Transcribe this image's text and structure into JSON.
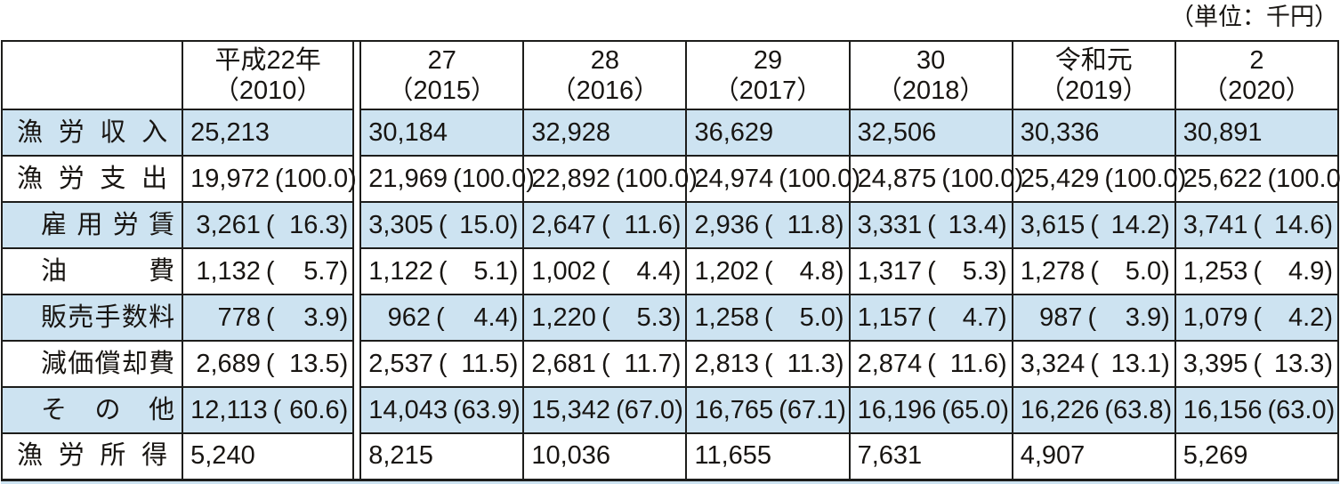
{
  "unit_label": "（単位：千円）",
  "colors": {
    "row_highlight": "#cde3f1",
    "border": "#1d1d1b",
    "text": "#181512"
  },
  "chart_data": {
    "type": "table",
    "unit": "千円",
    "columns": [
      {
        "era": "平成22年",
        "year": "（2010）"
      },
      {
        "era": "27",
        "year": "（2015）"
      },
      {
        "era": "28",
        "year": "（2016）"
      },
      {
        "era": "29",
        "year": "（2017）"
      },
      {
        "era": "30",
        "year": "（2018）"
      },
      {
        "era": "令和元",
        "year": "（2019）"
      },
      {
        "era": "2",
        "year": "（2020）"
      }
    ],
    "rows": [
      {
        "label": "漁労収入",
        "indent": false,
        "cells": [
          {
            "v": "25,213"
          },
          {
            "v": "30,184"
          },
          {
            "v": "32,928"
          },
          {
            "v": "36,629"
          },
          {
            "v": "32,506"
          },
          {
            "v": "30,336"
          },
          {
            "v": "30,891"
          }
        ]
      },
      {
        "label": "漁労支出",
        "indent": false,
        "cells": [
          {
            "v": "19,972",
            "p": "100.0"
          },
          {
            "v": "21,969",
            "p": "100.0"
          },
          {
            "v": "22,892",
            "p": "100.0"
          },
          {
            "v": "24,974",
            "p": "100.0"
          },
          {
            "v": "24,875",
            "p": "100.0"
          },
          {
            "v": "25,429",
            "p": "100.0"
          },
          {
            "v": "25,622",
            "p": "100.0"
          }
        ]
      },
      {
        "label": "雇用労賃",
        "indent": true,
        "cells": [
          {
            "v": "3,261",
            "p": "16.3"
          },
          {
            "v": "3,305",
            "p": "15.0"
          },
          {
            "v": "2,647",
            "p": "11.6"
          },
          {
            "v": "2,936",
            "p": "11.8"
          },
          {
            "v": "3,331",
            "p": "13.4"
          },
          {
            "v": "3,615",
            "p": "14.2"
          },
          {
            "v": "3,741",
            "p": "14.6"
          }
        ]
      },
      {
        "label": "油費",
        "indent": true,
        "cells": [
          {
            "v": "1,132",
            "p": "5.7"
          },
          {
            "v": "1,122",
            "p": "5.1"
          },
          {
            "v": "1,002",
            "p": "4.4"
          },
          {
            "v": "1,202",
            "p": "4.8"
          },
          {
            "v": "1,317",
            "p": "5.3"
          },
          {
            "v": "1,278",
            "p": "5.0"
          },
          {
            "v": "1,253",
            "p": "4.9"
          }
        ]
      },
      {
        "label": "販売手数料",
        "indent": true,
        "cells": [
          {
            "v": "778",
            "p": "3.9"
          },
          {
            "v": "962",
            "p": "4.4"
          },
          {
            "v": "1,220",
            "p": "5.3"
          },
          {
            "v": "1,258",
            "p": "5.0"
          },
          {
            "v": "1,157",
            "p": "4.7"
          },
          {
            "v": "987",
            "p": "3.9"
          },
          {
            "v": "1,079",
            "p": "4.2"
          }
        ]
      },
      {
        "label": "減価償却費",
        "indent": true,
        "cells": [
          {
            "v": "2,689",
            "p": "13.5"
          },
          {
            "v": "2,537",
            "p": "11.5"
          },
          {
            "v": "2,681",
            "p": "11.7"
          },
          {
            "v": "2,813",
            "p": "11.3"
          },
          {
            "v": "2,874",
            "p": "11.6"
          },
          {
            "v": "3,324",
            "p": "13.1"
          },
          {
            "v": "3,395",
            "p": "13.3"
          }
        ]
      },
      {
        "label": "その他",
        "indent": true,
        "cells": [
          {
            "v": "12,113",
            "p": "60.6"
          },
          {
            "v": "14,043",
            "p": "63.9"
          },
          {
            "v": "15,342",
            "p": "67.0"
          },
          {
            "v": "16,765",
            "p": "67.1"
          },
          {
            "v": "16,196",
            "p": "65.0"
          },
          {
            "v": "16,226",
            "p": "63.8"
          },
          {
            "v": "16,156",
            "p": "63.0"
          }
        ]
      },
      {
        "label": "漁労所得",
        "indent": false,
        "cells": [
          {
            "v": "5,240"
          },
          {
            "v": "8,215"
          },
          {
            "v": "10,036"
          },
          {
            "v": "11,655"
          },
          {
            "v": "7,631"
          },
          {
            "v": "4,907"
          },
          {
            "v": "5,269"
          }
        ]
      }
    ]
  }
}
